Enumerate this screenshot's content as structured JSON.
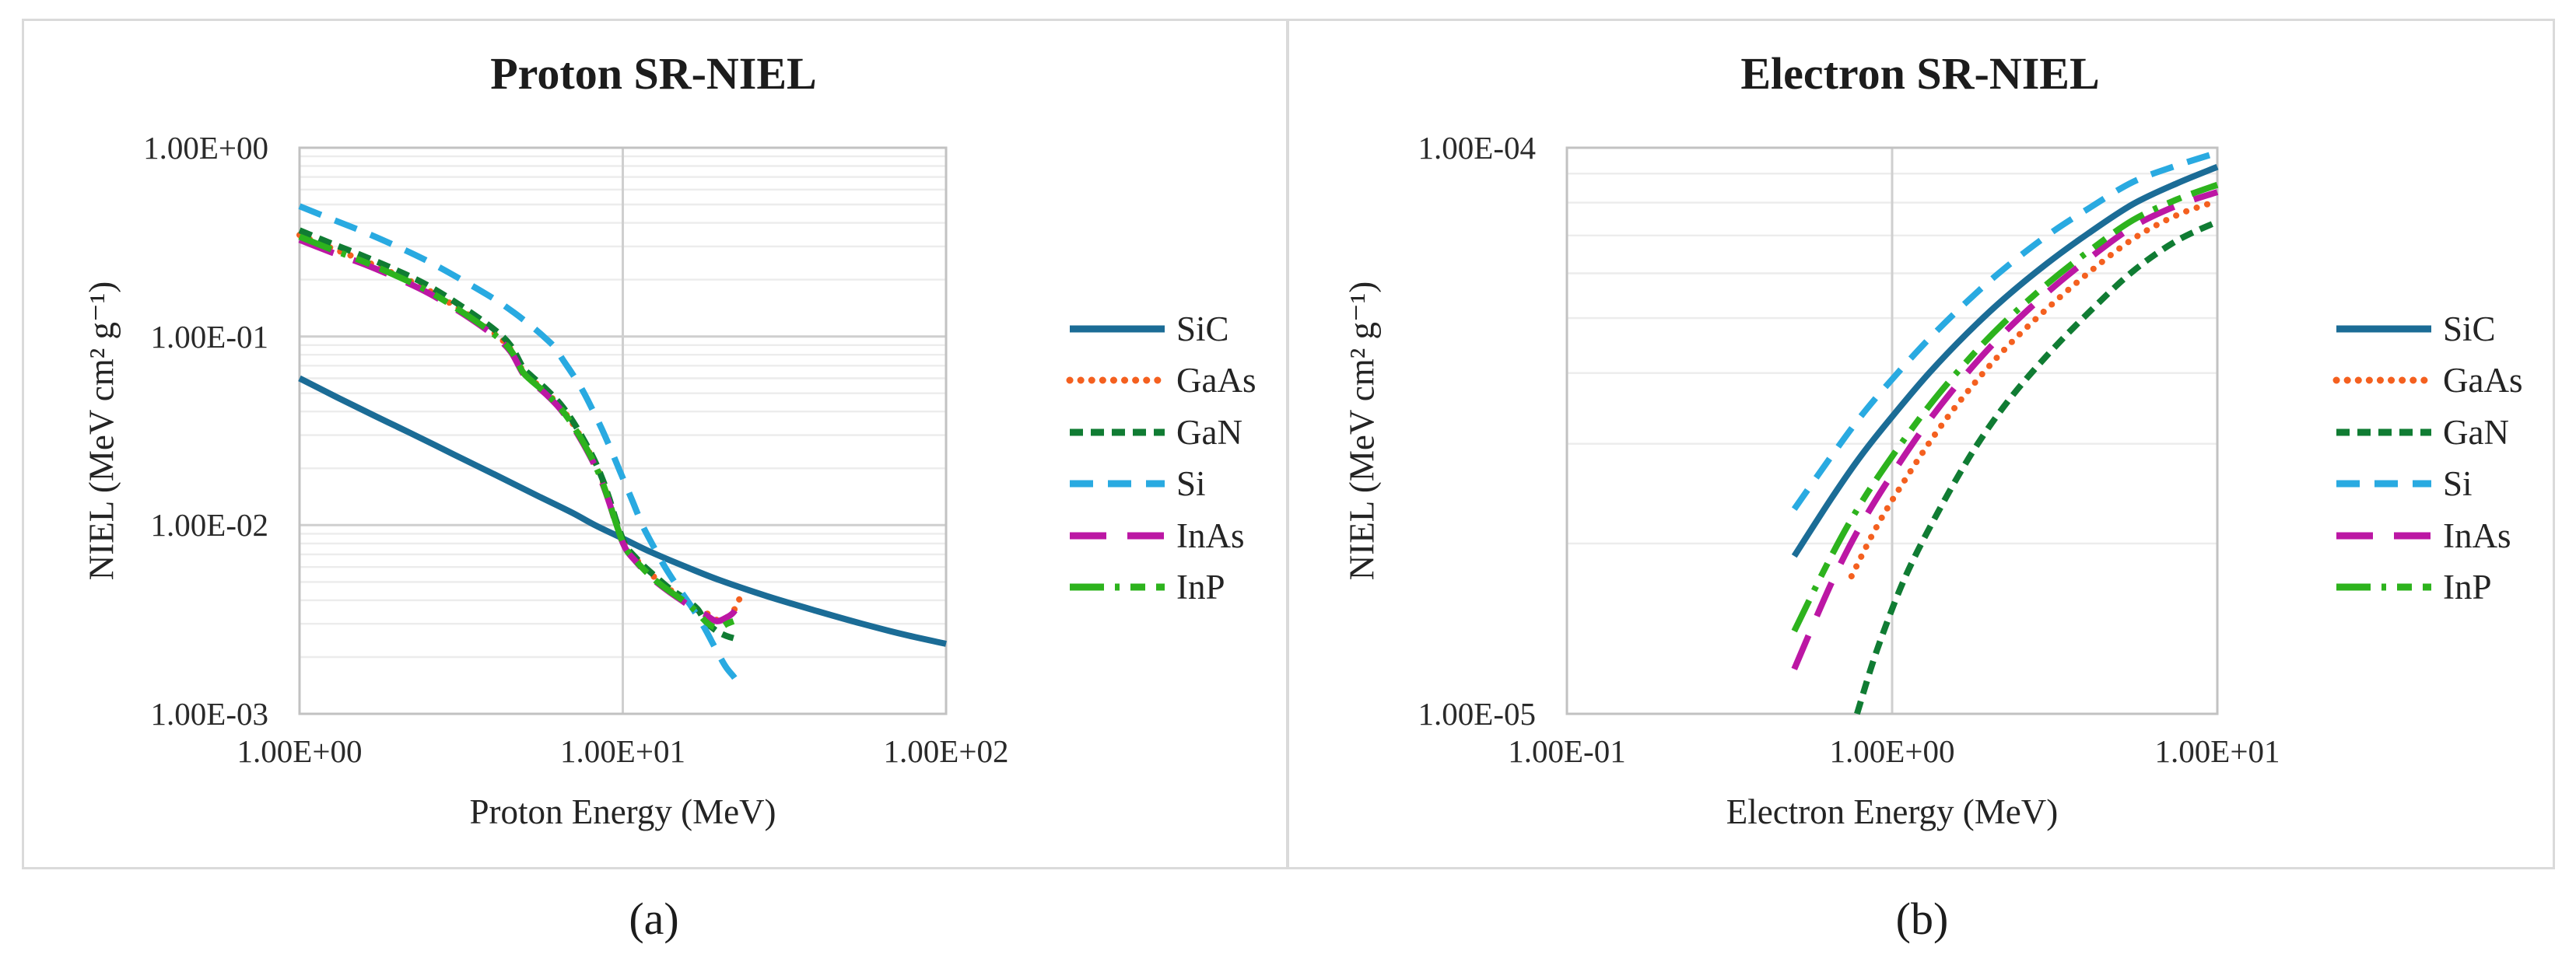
{
  "figure": {
    "background_color": "#ffffff",
    "border_color": "#dadada",
    "captions": [
      {
        "label": "(a)"
      },
      {
        "label": "(b)"
      }
    ]
  },
  "chart_data": [
    {
      "type": "line",
      "title": "Proton SR-NIEL",
      "xlabel": "Proton Energy (MeV)",
      "ylabel": "NIEL (MeV cm² g⁻¹)",
      "x_scale": "log",
      "y_scale": "log",
      "xlim": [
        1,
        100
      ],
      "ylim": [
        0.001,
        1
      ],
      "grid": {
        "y_minor": true,
        "y_major": true,
        "x_major": true,
        "x_minor": false
      },
      "legend_position": "right",
      "x_ticks": [
        {
          "value": 1,
          "label": "1.00E+00"
        },
        {
          "value": 10,
          "label": "1.00E+01"
        },
        {
          "value": 100,
          "label": "1.00E+02"
        }
      ],
      "y_ticks": [
        {
          "value": 1,
          "label": "1.00E+00"
        },
        {
          "value": 0.1,
          "label": "1.00E-01"
        },
        {
          "value": 0.01,
          "label": "1.00E-02"
        },
        {
          "value": 0.001,
          "label": "1.00E-03"
        }
      ],
      "series": [
        {
          "name": "SiC",
          "color": "#1b6c96",
          "dash": "solid",
          "x": [
            1,
            1.3,
            1.7,
            2.2,
            3,
            4,
            5.5,
            7,
            8.2,
            10,
            12,
            15,
            20,
            28,
            40,
            55,
            75,
            100
          ],
          "y": [
            0.06,
            0.0478,
            0.0381,
            0.0308,
            0.0237,
            0.0186,
            0.0142,
            0.0116,
            0.01,
            0.0085,
            0.0073,
            0.0062,
            0.0051,
            0.0042,
            0.0035,
            0.003,
            0.00262,
            0.00235
          ]
        },
        {
          "name": "GaAs",
          "color": "#f4601f",
          "dash": "dot",
          "x": [
            1,
            1.25,
            1.6,
            2,
            2.5,
            3.2,
            4,
            4.5,
            4.9,
            5.2,
            5.8,
            6.4,
            7.0,
            7.6,
            8.2,
            8.7,
            9.1,
            9.5,
            9.9,
            10.3,
            10.9,
            11.7,
            12.7,
            14,
            15.5,
            17,
            18,
            19.5,
            21,
            22.2,
            23
          ],
          "y": [
            0.345,
            0.295,
            0.25,
            0.212,
            0.176,
            0.136,
            0.104,
            0.0855,
            0.066,
            0.0595,
            0.0505,
            0.0425,
            0.0345,
            0.0272,
            0.0212,
            0.0167,
            0.0134,
            0.0106,
            0.0086,
            0.0075,
            0.0067,
            0.0059,
            0.0052,
            0.00455,
            0.00405,
            0.00355,
            0.00345,
            0.00315,
            0.00325,
            0.0036,
            0.0041
          ]
        },
        {
          "name": "GaN",
          "color": "#107c33",
          "dash": "dash",
          "x": [
            1,
            1.25,
            1.6,
            2,
            2.5,
            3.2,
            4,
            4.5,
            4.9,
            5.2,
            5.8,
            6.4,
            7.0,
            7.6,
            8.2,
            8.7,
            9.1,
            9.5,
            9.9,
            10.3,
            10.9,
            11.7,
            12.7,
            14,
            15.5,
            17,
            18,
            19.5,
            21,
            22
          ],
          "y": [
            0.365,
            0.312,
            0.264,
            0.224,
            0.186,
            0.143,
            0.109,
            0.0895,
            0.069,
            0.062,
            0.0525,
            0.044,
            0.0356,
            0.028,
            0.0218,
            0.0171,
            0.0137,
            0.0108,
            0.0088,
            0.0076,
            0.0068,
            0.006,
            0.0053,
            0.0046,
            0.0041,
            0.0036,
            0.0031,
            0.00275,
            0.00258,
            0.00252
          ]
        },
        {
          "name": "Si",
          "color": "#29aae1",
          "dash": "long-dash",
          "x": [
            1,
            1.25,
            1.6,
            2,
            2.5,
            3.2,
            4,
            4.6,
            5.2,
            5.8,
            6.2,
            6.5,
            7.0,
            7.5,
            8.0,
            8.6,
            9.2,
            9.9,
            10.7,
            11.5,
            12.4,
            13.5,
            14.8,
            16.3,
            17.8,
            19.4,
            20.8,
            22,
            22.8
          ],
          "y": [
            0.49,
            0.42,
            0.355,
            0.3,
            0.25,
            0.198,
            0.158,
            0.134,
            0.114,
            0.097,
            0.0865,
            0.076,
            0.063,
            0.052,
            0.042,
            0.0325,
            0.025,
            0.0185,
            0.0135,
            0.01,
            0.0078,
            0.006,
            0.0047,
            0.0037,
            0.0029,
            0.0022,
            0.00178,
            0.00158,
            0.00145
          ]
        },
        {
          "name": "InAs",
          "color": "#bc17a4",
          "dash": "xlong-dash",
          "x": [
            1,
            1.25,
            1.6,
            2,
            2.5,
            3.2,
            4,
            4.5,
            4.9,
            5.2,
            5.8,
            6.4,
            7.0,
            7.6,
            8.2,
            8.7,
            9.1,
            9.5,
            9.9,
            10.3,
            10.9,
            11.7,
            12.7,
            14,
            15.5,
            17,
            18,
            19.5,
            21,
            22,
            22.8,
            23.3
          ],
          "y": [
            0.325,
            0.28,
            0.24,
            0.204,
            0.17,
            0.132,
            0.101,
            0.083,
            0.064,
            0.0578,
            0.0492,
            0.0413,
            0.0334,
            0.0264,
            0.0206,
            0.0162,
            0.013,
            0.0103,
            0.0084,
            0.0073,
            0.0065,
            0.0057,
            0.005,
            0.0044,
            0.0039,
            0.0035,
            0.00335,
            0.0031,
            0.00325,
            0.00345,
            0.00385,
            0.00425
          ]
        },
        {
          "name": "InP",
          "color": "#2db31d",
          "dash": "dash-dot-dash",
          "x": [
            1,
            1.25,
            1.6,
            2,
            2.5,
            3.2,
            4,
            4.5,
            4.9,
            5.2,
            5.8,
            6.4,
            7.0,
            7.6,
            8.2,
            8.7,
            9.1,
            9.5,
            9.9,
            10.3,
            10.9,
            11.7,
            12.7,
            14,
            15.5,
            17,
            18,
            19,
            20,
            21,
            22
          ],
          "y": [
            0.338,
            0.29,
            0.247,
            0.209,
            0.174,
            0.134,
            0.1025,
            0.0845,
            0.065,
            0.0585,
            0.0498,
            0.0418,
            0.0339,
            0.0268,
            0.0209,
            0.0164,
            0.0131,
            0.0104,
            0.00845,
            0.00735,
            0.00655,
            0.00575,
            0.00505,
            0.00445,
            0.00395,
            0.00345,
            0.0031,
            0.0029,
            0.00287,
            0.003,
            0.0031
          ]
        }
      ]
    },
    {
      "type": "line",
      "title": "Electron SR-NIEL",
      "xlabel": "Electron Energy (MeV)",
      "ylabel": "NIEL (MeV cm² g⁻¹)",
      "x_scale": "log",
      "y_scale": "log",
      "xlim": [
        0.1,
        10
      ],
      "ylim": [
        1e-05,
        0.0001
      ],
      "grid": {
        "y_minor": true,
        "y_major": true,
        "x_major": true,
        "x_minor": false
      },
      "legend_position": "right",
      "x_ticks": [
        {
          "value": 0.1,
          "label": "1.00E-01"
        },
        {
          "value": 1,
          "label": "1.00E+00"
        },
        {
          "value": 10,
          "label": "1.00E+01"
        }
      ],
      "y_ticks": [
        {
          "value": 0.0001,
          "label": "1.00E-04"
        },
        {
          "value": 1e-05,
          "label": "1.00E-05"
        }
      ],
      "series": [
        {
          "name": "SiC",
          "color": "#1b6c96",
          "dash": "solid",
          "x": [
            0.5,
            0.65,
            0.8,
            1,
            1.3,
            1.7,
            2.2,
            3,
            4,
            5.5,
            7.5,
            10
          ],
          "y": [
            1.9e-05,
            2.4e-05,
            2.85e-05,
            3.35e-05,
            4e-05,
            4.7e-05,
            5.4e-05,
            6.25e-05,
            7.05e-05,
            7.95e-05,
            8.65e-05,
            9.25e-05
          ]
        },
        {
          "name": "GaAs",
          "color": "#f4601f",
          "dash": "dot",
          "x": [
            0.75,
            0.9,
            1.1,
            1.4,
            1.8,
            2.3,
            3,
            4,
            5.5,
            7.5,
            10
          ],
          "y": [
            1.75e-05,
            2.15e-05,
            2.6e-05,
            3.2e-05,
            3.85e-05,
            4.5e-05,
            5.2e-05,
            6e-05,
            6.9e-05,
            7.6e-05,
            8.05e-05
          ]
        },
        {
          "name": "GaN",
          "color": "#107c33",
          "dash": "dash",
          "x": [
            0.78,
            0.9,
            1.1,
            1.4,
            1.8,
            2.3,
            3,
            4,
            5.5,
            7.5,
            10
          ],
          "y": [
            1e-05,
            1.3e-05,
            1.75e-05,
            2.3e-05,
            2.95e-05,
            3.6e-05,
            4.3e-05,
            5.1e-05,
            6.05e-05,
            6.85e-05,
            7.4e-05
          ]
        },
        {
          "name": "Si",
          "color": "#29aae1",
          "dash": "long-dash",
          "x": [
            0.5,
            0.65,
            0.8,
            1,
            1.3,
            1.7,
            2.2,
            3,
            4,
            5.5,
            7.5,
            10
          ],
          "y": [
            2.3e-05,
            2.85e-05,
            3.35e-05,
            3.9e-05,
            4.6e-05,
            5.35e-05,
            6.1e-05,
            7e-05,
            7.8e-05,
            8.7e-05,
            9.3e-05,
            9.8e-05
          ]
        },
        {
          "name": "InAs",
          "color": "#bc17a4",
          "dash": "xlong-dash",
          "x": [
            0.5,
            0.65,
            0.8,
            1,
            1.3,
            1.7,
            2.2,
            3,
            4,
            5.5,
            7.5,
            10
          ],
          "y": [
            1.2e-05,
            1.7e-05,
            2.15e-05,
            2.65e-05,
            3.3e-05,
            4e-05,
            4.7e-05,
            5.55e-05,
            6.35e-05,
            7.25e-05,
            7.9e-05,
            8.35e-05
          ]
        },
        {
          "name": "InP",
          "color": "#2db31d",
          "dash": "dash-dot-dash",
          "x": [
            0.5,
            0.65,
            0.8,
            1,
            1.3,
            1.7,
            2.2,
            3,
            4,
            5.5,
            7.5,
            10
          ],
          "y": [
            1.4e-05,
            1.9e-05,
            2.35e-05,
            2.85e-05,
            3.5e-05,
            4.2e-05,
            4.9e-05,
            5.75e-05,
            6.55e-05,
            7.45e-05,
            8.1e-05,
            8.6e-05
          ]
        }
      ]
    }
  ]
}
